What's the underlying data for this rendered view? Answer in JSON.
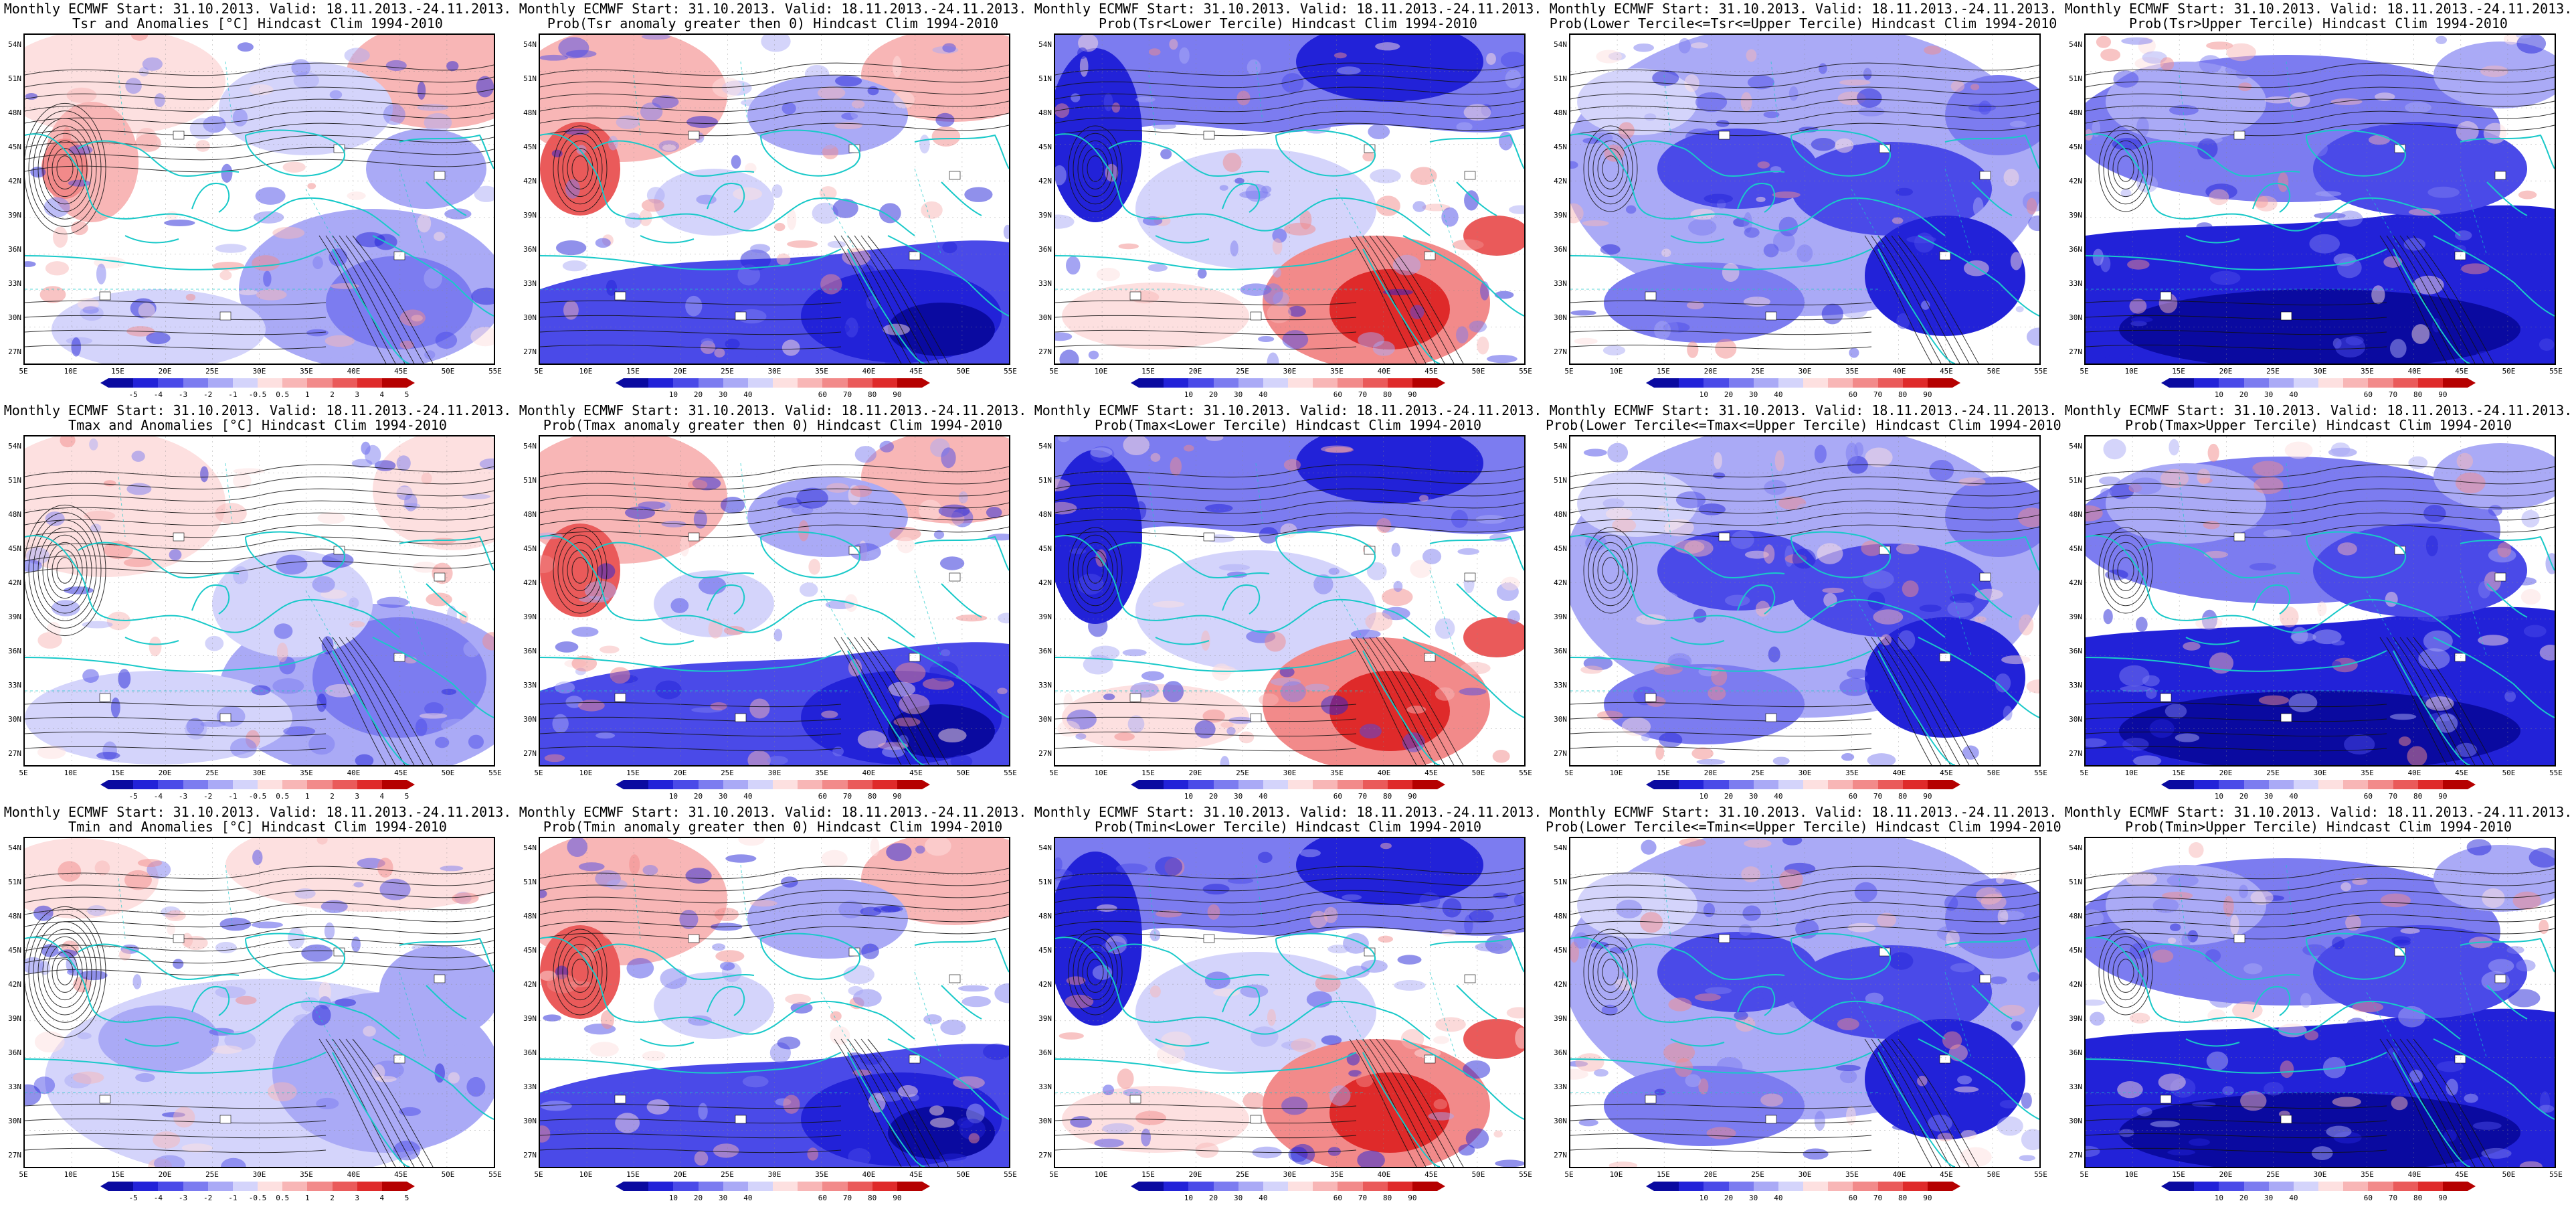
{
  "colors": {
    "ocean": "#ffffff",
    "coast": "#19c9c9",
    "contour": "#111111",
    "neg": [
      "#0a0aa0",
      "#2222d8",
      "#4a4ae8",
      "#7c7cf0",
      "#aaaaf6",
      "#d4d4fb"
    ],
    "pos": [
      "#fde0e0",
      "#f8b6b6",
      "#f28a8a",
      "#ea5a5a",
      "#df2a2a",
      "#b50000"
    ]
  },
  "lat_labels": [
    "54N",
    "51N",
    "48N",
    "45N",
    "42N",
    "39N",
    "36N",
    "33N",
    "30N",
    "27N"
  ],
  "lon_labels": [
    "5E",
    "10E",
    "15E",
    "20E",
    "25E",
    "30E",
    "35E",
    "40E",
    "45E",
    "50E",
    "55E"
  ],
  "rows": [
    {
      "variable": "Tsr",
      "panels": [
        {
          "title1": "Monthly ECMWF Start: 31.10.2013. Valid: 18.11.2013.-24.11.2013.",
          "title2": "Tsr and Anomalies [°C] Hindcast Clim 1994-2010",
          "kind": "anom",
          "pattern": "anom_tsr"
        },
        {
          "title1": "Monthly ECMWF Start: 31.10.2013. Valid: 18.11.2013.-24.11.2013.",
          "title2": "Prob(Tsr anomaly greater then 0) Hindcast Clim 1994-2010",
          "kind": "prob",
          "pattern": "warm_w"
        },
        {
          "title1": "Monthly ECMWF Start: 31.10.2013. Valid: 18.11.2013.-24.11.2013.",
          "title2": "Prob(Tsr<Lower Tercile) Hindcast Clim 1994-2010",
          "kind": "prob",
          "pattern": "lower"
        },
        {
          "title1": "Monthly ECMWF Start: 31.10.2013. Valid: 18.11.2013.-24.11.2013.",
          "title2": "Prob(Lower Tercile<=Tsr<=Upper Tercile) Hindcast Clim 1994-2010",
          "kind": "prob",
          "pattern": "middle"
        },
        {
          "title1": "Monthly ECMWF Start: 31.10.2013. Valid: 18.11.2013.-24.11.2013.",
          "title2": "Prob(Tsr>Upper Tercile) Hindcast Clim 1994-2010",
          "kind": "prob",
          "pattern": "upper"
        }
      ]
    },
    {
      "variable": "Tmax",
      "panels": [
        {
          "title1": "Monthly ECMWF Start: 31.10.2013. Valid: 18.11.2013.-24.11.2013.",
          "title2": "Tmax and Anomalies [°C] Hindcast Clim 1994-2010",
          "kind": "anom",
          "pattern": "anom_tmax"
        },
        {
          "title1": "Monthly ECMWF Start: 31.10.2013. Valid: 18.11.2013.-24.11.2013.",
          "title2": "Prob(Tmax anomaly greater then 0) Hindcast Clim 1994-2010",
          "kind": "prob",
          "pattern": "warm_w"
        },
        {
          "title1": "Monthly ECMWF Start: 31.10.2013. Valid: 18.11.2013.-24.11.2013.",
          "title2": "Prob(Tmax<Lower Tercile) Hindcast Clim 1994-2010",
          "kind": "prob",
          "pattern": "lower"
        },
        {
          "title1": "Monthly ECMWF Start: 31.10.2013. Valid: 18.11.2013.-24.11.2013.",
          "title2": "Prob(Lower Tercile<=Tmax<=Upper Tercile) Hindcast Clim 1994-2010",
          "kind": "prob",
          "pattern": "middle"
        },
        {
          "title1": "Monthly ECMWF Start: 31.10.2013. Valid: 18.11.2013.-24.11.2013.",
          "title2": "Prob(Tmax>Upper Tercile) Hindcast Clim 1994-2010",
          "kind": "prob",
          "pattern": "upper"
        }
      ]
    },
    {
      "variable": "Tmin",
      "panels": [
        {
          "title1": "Monthly ECMWF Start: 31.10.2013. Valid: 18.11.2013.-24.11.2013.",
          "title2": "Tmin and Anomalies [°C] Hindcast Clim 1994-2010",
          "kind": "anom",
          "pattern": "anom_tmin"
        },
        {
          "title1": "Monthly ECMWF Start: 31.10.2013. Valid: 18.11.2013.-24.11.2013.",
          "title2": "Prob(Tmin anomaly greater then 0) Hindcast Clim 1994-2010",
          "kind": "prob",
          "pattern": "warm_w"
        },
        {
          "title1": "Monthly ECMWF Start: 31.10.2013. Valid: 18.11.2013.-24.11.2013.",
          "title2": "Prob(Tmin<Lower Tercile) Hindcast Clim 1994-2010",
          "kind": "prob",
          "pattern": "lower"
        },
        {
          "title1": "Monthly ECMWF Start: 31.10.2013. Valid: 18.11.2013.-24.11.2013.",
          "title2": "Prob(Lower Tercile<=Tmin<=Upper Tercile) Hindcast Clim 1994-2010",
          "kind": "prob",
          "pattern": "middle"
        },
        {
          "title1": "Monthly ECMWF Start: 31.10.2013. Valid: 18.11.2013.-24.11.2013.",
          "title2": "Prob(Tmin>Upper Tercile) Hindcast Clim 1994-2010",
          "kind": "prob",
          "pattern": "upper"
        }
      ]
    }
  ],
  "anom_colorbar": [
    "-5",
    "-4",
    "-3",
    "-2",
    "-1",
    "-0.5",
    "0.5",
    "1",
    "2",
    "3",
    "4",
    "5"
  ],
  "prob_colorbar": [
    "10",
    "20",
    "30",
    "40",
    "60",
    "70",
    "80",
    "90"
  ]
}
